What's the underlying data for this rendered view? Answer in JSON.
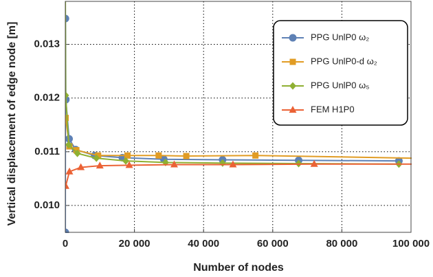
{
  "chart_data": {
    "type": "line",
    "x_label": "Number of nodes",
    "y_label": "Vertical displacement of edge node [m]",
    "xlim": [
      0,
      100000
    ],
    "ylim": [
      0.0095,
      0.0138
    ],
    "xticks": [
      0,
      {
        "value": 20000,
        "label": "20 000"
      },
      {
        "value": 40000,
        "label": "40 000"
      },
      {
        "value": 60000,
        "label": "60 000"
      },
      {
        "value": 80000,
        "label": "80 000"
      },
      {
        "value": 100000,
        "label": "100 000"
      }
    ],
    "yticks": [
      {
        "value": 0.01,
        "label": "0.010"
      },
      {
        "value": 0.011,
        "label": "0.011"
      },
      {
        "value": 0.012,
        "label": "0.012"
      },
      {
        "value": 0.013,
        "label": "0.013"
      }
    ],
    "grid": true,
    "legend": "top-right",
    "series": [
      {
        "name": "PPG UnlP0 ω₂",
        "color": "#5e81b5",
        "marker": "circle",
        "x": [
          10,
          40,
          150,
          1100,
          3000,
          8500,
          16500,
          28500,
          45500,
          67500,
          96500
        ],
        "values": [
          0.0095,
          0.01348,
          0.01197,
          0.01124,
          0.01104,
          0.01093,
          0.01089,
          0.01086,
          0.01085,
          0.01084,
          0.01083
        ]
      },
      {
        "name": "PPG UnlP0-d ω₂",
        "color": "#e19c24",
        "marker": "square",
        "x": [
          100,
          1200,
          3200,
          9500,
          18000,
          27000,
          35000,
          55000,
          120000
        ],
        "values": [
          0.01163,
          0.0111,
          0.01103,
          0.01093,
          0.01093,
          0.01093,
          0.01092,
          0.01093,
          0.01086
        ]
      },
      {
        "name": "PPG UnlP0 ω₅",
        "color": "#8fb032",
        "marker": "diamond",
        "x": [
          10,
          100,
          1000,
          3500,
          9000,
          17500,
          29000,
          45500,
          67500,
          96500
        ],
        "values": [
          0.014,
          0.01205,
          0.01113,
          0.01097,
          0.01088,
          0.01083,
          0.0108,
          0.01079,
          0.01078,
          0.01077
        ]
      },
      {
        "name": "FEM H1P0",
        "color": "#eb6235",
        "marker": "triangle",
        "x": [
          100,
          1200,
          4500,
          10000,
          18500,
          31500,
          48500,
          72000,
          120000
        ],
        "values": [
          0.01036,
          0.01063,
          0.01071,
          0.01074,
          0.01075,
          0.01076,
          0.01076,
          0.01077,
          0.01077
        ]
      }
    ]
  }
}
